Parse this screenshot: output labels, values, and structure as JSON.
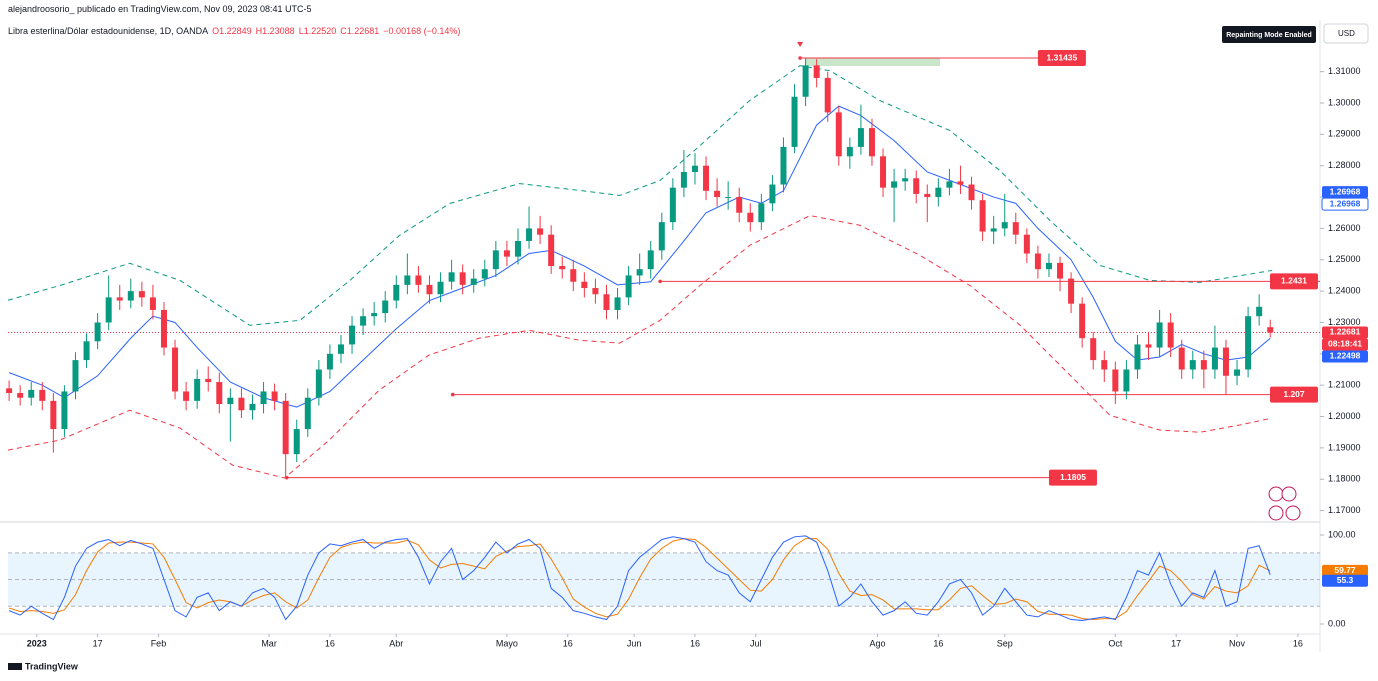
{
  "chart_data": {
    "type": "candlestick",
    "header": "alejandroosorio_ publicado en TradingView.com, Nov 09, 2023 08:41 UTC-5",
    "title": "Libra esterlina/Dólar estadounidense, 1D, OANDA",
    "ohlc_legend": [
      "O1.22849",
      "H1.23088",
      "L1.22520",
      "C1.22681",
      "−0.00168 (−0.14%)"
    ],
    "badge": "Repainting Mode Enabled",
    "currency": "USD",
    "countdown": "08:18:41",
    "brand": "TradingView",
    "up_color": "#089981",
    "down_color": "#f23645",
    "x": [
      -5,
      -3,
      -1,
      1,
      3,
      5,
      7,
      9,
      11,
      13,
      15,
      17,
      19,
      21,
      23,
      25,
      27,
      29,
      31,
      33,
      35,
      37,
      39,
      41,
      43,
      45,
      47,
      49,
      51,
      53,
      55,
      57,
      59,
      61,
      63,
      65,
      67,
      69,
      71,
      73,
      75,
      77,
      79,
      81,
      83,
      85,
      87,
      89,
      91,
      93,
      95,
      97,
      99,
      101,
      103,
      105,
      107,
      109,
      111,
      113,
      115,
      117,
      119,
      121,
      123,
      125,
      127,
      129,
      131,
      133,
      135,
      137,
      139,
      141,
      143,
      145,
      147,
      149,
      151,
      153,
      155,
      157,
      159,
      161,
      163,
      165,
      167,
      169,
      171,
      173,
      175,
      177,
      179,
      181,
      183,
      185,
      187,
      189,
      191,
      193,
      195,
      197,
      199,
      201,
      203,
      205,
      207,
      209,
      211,
      213,
      215,
      217,
      219,
      221,
      223
    ],
    "open": [
      1.209,
      1.2075,
      1.206,
      1.2085,
      1.205,
      1.196,
      1.208,
      1.218,
      1.224,
      1.23,
      1.238,
      1.237,
      1.24,
      1.238,
      1.234,
      1.222,
      1.208,
      1.205,
      1.212,
      1.211,
      1.204,
      1.206,
      1.202,
      1.204,
      1.208,
      1.205,
      1.188,
      1.196,
      1.206,
      1.215,
      1.22,
      1.223,
      1.229,
      1.232,
      1.233,
      1.237,
      1.242,
      1.245,
      1.242,
      1.239,
      1.243,
      1.246,
      1.242,
      1.244,
      1.247,
      1.253,
      1.251,
      1.256,
      1.26,
      1.258,
      1.248,
      1.247,
      1.243,
      1.241,
      1.239,
      1.234,
      1.238,
      1.245,
      1.247,
      1.253,
      1.262,
      1.273,
      1.278,
      1.28,
      1.272,
      1.27,
      1.27,
      1.265,
      1.262,
      1.268,
      1.274,
      1.286,
      1.302,
      1.312,
      1.308,
      1.297,
      1.283,
      1.286,
      1.292,
      1.283,
      1.273,
      1.275,
      1.276,
      1.271,
      1.27,
      1.273,
      1.275,
      1.274,
      1.269,
      1.259,
      1.26,
      1.262,
      1.258,
      1.252,
      1.247,
      1.249,
      1.244,
      1.236,
      1.225,
      1.218,
      1.215,
      1.208,
      1.215,
      1.223,
      1.222,
      1.23,
      1.222,
      1.215,
      1.218,
      1.215,
      1.222,
      1.213,
      1.215,
      1.232,
      1.22849
    ],
    "high": [
      1.2115,
      1.21,
      1.211,
      1.211,
      1.2075,
      1.21,
      1.2205,
      1.2265,
      1.233,
      1.245,
      1.242,
      1.244,
      1.243,
      1.242,
      1.2365,
      1.2245,
      1.211,
      1.215,
      1.216,
      1.214,
      1.209,
      1.209,
      1.207,
      1.211,
      1.2105,
      1.2075,
      1.199,
      1.209,
      1.218,
      1.223,
      1.226,
      1.232,
      1.2345,
      1.2365,
      1.24,
      1.245,
      1.252,
      1.248,
      1.245,
      1.246,
      1.25,
      1.2485,
      1.247,
      1.25,
      1.256,
      1.256,
      1.26,
      1.267,
      1.264,
      1.261,
      1.251,
      1.25,
      1.246,
      1.244,
      1.242,
      1.241,
      1.248,
      1.252,
      1.256,
      1.265,
      1.276,
      1.285,
      1.284,
      1.283,
      1.276,
      1.275,
      1.273,
      1.268,
      1.271,
      1.277,
      1.289,
      1.306,
      1.31435,
      1.314,
      1.31,
      1.299,
      1.289,
      1.2995,
      1.295,
      1.2855,
      1.279,
      1.279,
      1.2785,
      1.274,
      1.276,
      1.279,
      1.28,
      1.2765,
      1.271,
      1.264,
      1.271,
      1.265,
      1.26,
      1.2545,
      1.252,
      1.251,
      1.246,
      1.238,
      1.227,
      1.221,
      1.2175,
      1.218,
      1.226,
      1.227,
      1.234,
      1.233,
      1.2245,
      1.221,
      1.221,
      1.229,
      1.2245,
      1.218,
      1.235,
      1.239,
      1.23088
    ],
    "low": [
      1.205,
      1.2035,
      1.2035,
      1.202,
      1.1885,
      1.1935,
      1.2055,
      1.2155,
      1.2215,
      1.2275,
      1.234,
      1.2345,
      1.235,
      1.231,
      1.2195,
      1.2055,
      1.202,
      1.2025,
      1.208,
      1.201,
      1.192,
      1.1995,
      1.199,
      1.201,
      1.202,
      1.1805,
      1.1855,
      1.1935,
      1.2035,
      1.212,
      1.217,
      1.22,
      1.226,
      1.229,
      1.23,
      1.2345,
      1.239,
      1.2395,
      1.236,
      1.2365,
      1.2405,
      1.239,
      1.2395,
      1.2415,
      1.2445,
      1.248,
      1.2485,
      1.2535,
      1.255,
      1.2455,
      1.244,
      1.24,
      1.238,
      1.236,
      1.231,
      1.231,
      1.2355,
      1.242,
      1.244,
      1.25,
      1.2595,
      1.27,
      1.274,
      1.269,
      1.267,
      1.266,
      1.262,
      1.259,
      1.2595,
      1.2655,
      1.2715,
      1.284,
      1.299,
      1.305,
      1.294,
      1.28,
      1.279,
      1.2835,
      1.28,
      1.27,
      1.262,
      1.272,
      1.268,
      1.262,
      1.267,
      1.2705,
      1.271,
      1.266,
      1.256,
      1.255,
      1.2575,
      1.255,
      1.249,
      1.244,
      1.2445,
      1.24,
      1.233,
      1.222,
      1.215,
      1.211,
      1.204,
      1.2055,
      1.212,
      1.218,
      1.219,
      1.219,
      1.212,
      1.212,
      1.209,
      1.212,
      1.207,
      1.21,
      1.2125,
      1.229,
      1.2252
    ],
    "close": [
      1.2075,
      1.206,
      1.2085,
      1.205,
      1.196,
      1.208,
      1.218,
      1.224,
      1.23,
      1.238,
      1.237,
      1.24,
      1.238,
      1.234,
      1.222,
      1.208,
      1.205,
      1.212,
      1.211,
      1.204,
      1.206,
      1.202,
      1.204,
      1.208,
      1.205,
      1.188,
      1.196,
      1.206,
      1.215,
      1.22,
      1.223,
      1.229,
      1.232,
      1.233,
      1.237,
      1.242,
      1.245,
      1.242,
      1.239,
      1.243,
      1.246,
      1.242,
      1.244,
      1.247,
      1.253,
      1.251,
      1.256,
      1.26,
      1.258,
      1.248,
      1.247,
      1.243,
      1.241,
      1.239,
      1.234,
      1.238,
      1.245,
      1.247,
      1.253,
      1.262,
      1.273,
      1.278,
      1.28,
      1.272,
      1.27,
      1.27,
      1.265,
      1.262,
      1.268,
      1.274,
      1.286,
      1.302,
      1.312,
      1.308,
      1.297,
      1.283,
      1.286,
      1.292,
      1.283,
      1.273,
      1.275,
      1.276,
      1.271,
      1.27,
      1.273,
      1.275,
      1.274,
      1.269,
      1.259,
      1.26,
      1.262,
      1.258,
      1.252,
      1.247,
      1.249,
      1.244,
      1.236,
      1.225,
      1.218,
      1.215,
      1.208,
      1.215,
      1.223,
      1.222,
      1.23,
      1.222,
      1.215,
      1.218,
      1.215,
      1.222,
      1.213,
      1.215,
      1.232,
      1.235,
      1.22681
    ],
    "xlim": [
      -5.2,
      232
    ],
    "xticks": [
      {
        "value": 0,
        "label": "2023"
      },
      {
        "value": 11,
        "label": "17"
      },
      {
        "value": 22,
        "label": "Feb"
      },
      {
        "value": 42,
        "label": "Mar"
      },
      {
        "value": 53,
        "label": "16"
      },
      {
        "value": 65,
        "label": "Abr"
      },
      {
        "value": 85,
        "label": "Mayo"
      },
      {
        "value": 96,
        "label": "16"
      },
      {
        "value": 108,
        "label": "Jun"
      },
      {
        "value": 119,
        "label": "16"
      },
      {
        "value": 130,
        "label": "Jul"
      },
      {
        "value": 152,
        "label": "Ago"
      },
      {
        "value": 163,
        "label": "16"
      },
      {
        "value": 175,
        "label": "Sep"
      },
      {
        "value": 195,
        "label": "Oct"
      },
      {
        "value": 206,
        "label": "17"
      },
      {
        "value": 217,
        "label": "Nov"
      },
      {
        "value": 228,
        "label": "16"
      }
    ],
    "ylim": [
      1.167,
      1.3185
    ],
    "yticks": [
      {
        "value": 1.31,
        "label": "1.31000"
      },
      {
        "value": 1.3,
        "label": "1.30000"
      },
      {
        "value": 1.29,
        "label": "1.29000"
      },
      {
        "value": 1.28,
        "label": "1.28000"
      },
      {
        "value": 1.27,
        "label": "1.27000"
      },
      {
        "value": 1.26,
        "label": "1.26000"
      },
      {
        "value": 1.25,
        "label": "1.25000"
      },
      {
        "value": 1.24,
        "label": "1.24000"
      },
      {
        "value": 1.23,
        "label": "1.23000"
      },
      {
        "value": 1.22,
        "label": "1.22000"
      },
      {
        "value": 1.21,
        "label": "1.21000"
      },
      {
        "value": 1.2,
        "label": "1.20000"
      },
      {
        "value": 1.19,
        "label": "1.19000"
      },
      {
        "value": 1.18,
        "label": "1.18000"
      },
      {
        "value": 1.17,
        "label": "1.17000"
      }
    ],
    "ma": {
      "color": "#2962ff",
      "x": [
        -5,
        1,
        5,
        11,
        17,
        21,
        25,
        29,
        35,
        41,
        47,
        53,
        59,
        65,
        71,
        77,
        83,
        89,
        93,
        99,
        105,
        111,
        117,
        121,
        127,
        131,
        135,
        141,
        145,
        149,
        155,
        161,
        167,
        173,
        177,
        181,
        187,
        191,
        195,
        199,
        203,
        207,
        211,
        215,
        219,
        223
      ],
      "values": [
        1.214,
        1.21,
        1.206,
        1.213,
        1.225,
        1.232,
        1.23,
        1.222,
        1.211,
        1.206,
        1.203,
        1.208,
        1.218,
        1.228,
        1.237,
        1.241,
        1.245,
        1.252,
        1.253,
        1.248,
        1.242,
        1.243,
        1.256,
        1.265,
        1.27,
        1.268,
        1.272,
        1.293,
        1.299,
        1.296,
        1.288,
        1.278,
        1.274,
        1.27,
        1.268,
        1.26,
        1.25,
        1.238,
        1.224,
        1.218,
        1.219,
        1.223,
        1.22,
        1.218,
        1.219,
        1.22498
      ]
    },
    "upper": {
      "color": "#089981",
      "x": [
        -5.2,
        4.2,
        16.8,
        25.9,
        38.5,
        47.6,
        56.6,
        65.6,
        74.7,
        87.3,
        98.2,
        105.4,
        112.7,
        119.9,
        128.9,
        138,
        143.4,
        152.4,
        165.1,
        174.1,
        183.2,
        192.2,
        201.3,
        210.3,
        223.3
      ],
      "values": [
        1.2371,
        1.2418,
        1.2489,
        1.2434,
        1.2291,
        1.2307,
        1.2434,
        1.2578,
        1.268,
        1.2743,
        1.2721,
        1.2705,
        1.2753,
        1.2864,
        1.3008,
        1.3119,
        1.3103,
        1.3008,
        1.2912,
        1.2785,
        1.2625,
        1.2482,
        1.2434,
        1.2428,
        1.2466
      ]
    },
    "lower": {
      "color": "#f23645",
      "x": [
        -5.2,
        4.2,
        16.8,
        25.9,
        35.4,
        44.8,
        52.9,
        61.9,
        70.9,
        80,
        89,
        98.2,
        105.4,
        112.7,
        119.9,
        128.9,
        139.8,
        148.8,
        159.7,
        168.7,
        177.8,
        186.8,
        194,
        203,
        210.3,
        217.5,
        223.3
      ],
      "values": [
        1.1893,
        1.1925,
        1.202,
        1.1963,
        1.1845,
        1.1804,
        1.1925,
        1.2084,
        1.2196,
        1.225,
        1.2275,
        1.2243,
        1.2234,
        1.2307,
        1.2418,
        1.2546,
        1.2641,
        1.261,
        1.2514,
        1.2418,
        1.2291,
        1.2132,
        1.2004,
        1.1957,
        1.195,
        1.1973,
        1.1995
      ]
    },
    "levels": [
      {
        "value": 1.31435,
        "from": 138,
        "to": 181
      },
      {
        "value": 1.2431,
        "from": 112.7,
        "to": 232
      },
      {
        "value": 1.207,
        "from": 75.2,
        "to": 223.6
      },
      {
        "value": 1.1805,
        "from": 45.2,
        "to": 183
      }
    ],
    "zone": {
      "x": [
        139,
        163.3
      ],
      "y": [
        1.3118,
        1.31435
      ]
    },
    "indicator_values": [
      1.26968,
      1.26968
    ],
    "oscillator": {
      "ylim": [
        -9,
        112.4
      ],
      "yticks": [
        {
          "value": 0,
          "label": "0.00"
        },
        {
          "value": 100,
          "label": "100.00"
        }
      ],
      "bands": [
        20,
        50,
        80
      ],
      "k": {
        "color": "#2962ff",
        "values": [
          15,
          10,
          20,
          12,
          5,
          30,
          65,
          85,
          92,
          95,
          88,
          94,
          90,
          85,
          50,
          15,
          8,
          30,
          35,
          15,
          25,
          20,
          35,
          40,
          30,
          5,
          20,
          55,
          80,
          90,
          88,
          92,
          95,
          85,
          92,
          95,
          96,
          75,
          45,
          70,
          85,
          50,
          60,
          75,
          92,
          80,
          90,
          95,
          85,
          40,
          30,
          15,
          12,
          8,
          5,
          20,
          60,
          75,
          85,
          95,
          98,
          96,
          92,
          70,
          60,
          55,
          35,
          25,
          50,
          75,
          92,
          98,
          99,
          92,
          60,
          20,
          30,
          45,
          25,
          10,
          15,
          25,
          12,
          10,
          25,
          45,
          50,
          35,
          10,
          20,
          40,
          25,
          10,
          8,
          15,
          10,
          5,
          4,
          6,
          8,
          5,
          30,
          60,
          55,
          80,
          45,
          20,
          35,
          30,
          60,
          20,
          25,
          85,
          88,
          55.3
        ]
      },
      "d": {
        "color": "#f57c00",
        "values": [
          18,
          14,
          15,
          14,
          12,
          16,
          33,
          60,
          81,
          91,
          92,
          92,
          91,
          90,
          75,
          50,
          24,
          18,
          24,
          27,
          25,
          20,
          27,
          32,
          35,
          25,
          18,
          27,
          52,
          75,
          86,
          90,
          92,
          91,
          91,
          91,
          94,
          89,
          72,
          63,
          67,
          68,
          65,
          62,
          76,
          82,
          87,
          88,
          90,
          73,
          52,
          28,
          19,
          12,
          8,
          11,
          28,
          52,
          73,
          85,
          93,
          96,
          95,
          86,
          74,
          62,
          50,
          38,
          37,
          50,
          72,
          88,
          96,
          96,
          84,
          57,
          37,
          32,
          33,
          27,
          17,
          17,
          17,
          16,
          16,
          27,
          40,
          43,
          32,
          22,
          23,
          28,
          25,
          14,
          11,
          11,
          10,
          6,
          5,
          6,
          6,
          14,
          32,
          48,
          65,
          60,
          48,
          33,
          28,
          42,
          37,
          35,
          43,
          66,
          59.77
        ]
      }
    }
  }
}
